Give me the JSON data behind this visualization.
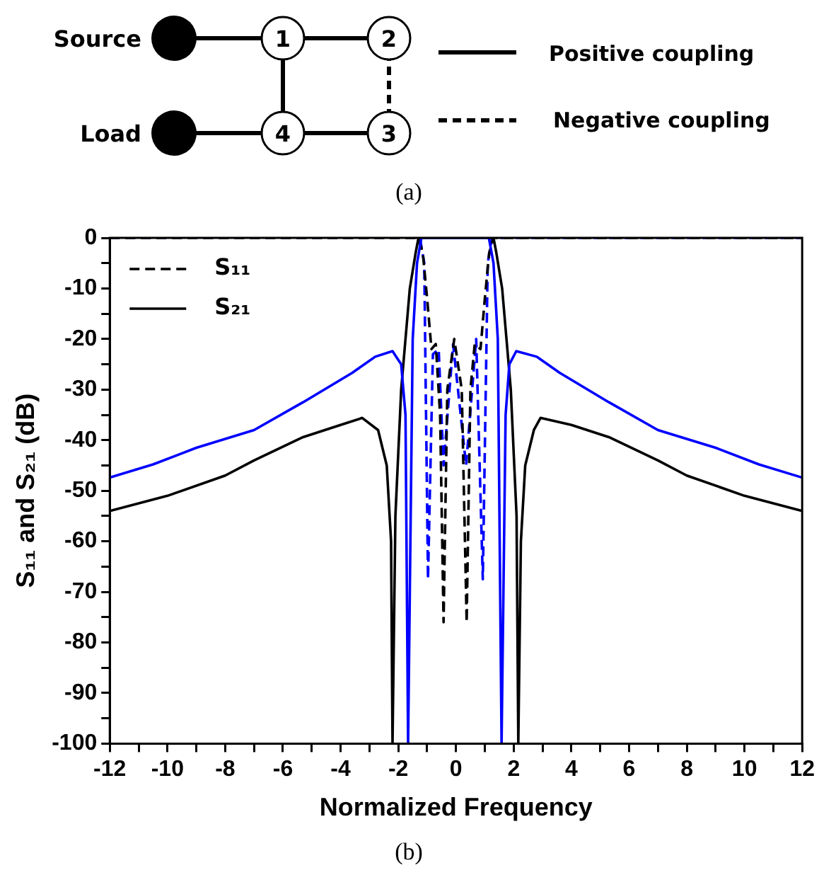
{
  "chart_data": {
    "type": "line",
    "xlabel": "Normalized Frequency",
    "ylabel": "S₁₁ and S₂₁ (dB)",
    "annotations": [
      "Source",
      "Load",
      "1",
      "2",
      "3",
      "4",
      "Positive coupling",
      "Negative coupling",
      "(a)",
      "(b)"
    ],
    "xlim": [
      -12,
      12
    ],
    "ylim": [
      -100,
      0
    ],
    "xticks": [
      -12,
      {
        "value": -11,
        "label": null
      },
      -10,
      {
        "value": -9,
        "label": null
      },
      -8,
      {
        "value": -7,
        "label": null
      },
      -6,
      {
        "value": -5,
        "label": null
      },
      -4,
      {
        "value": -3,
        "label": null
      },
      -2,
      {
        "value": -1,
        "label": null
      },
      0,
      {
        "value": 1,
        "label": null
      },
      2,
      {
        "value": 3,
        "label": null
      },
      4,
      {
        "value": 5,
        "label": null
      },
      6,
      {
        "value": 7,
        "label": null
      },
      8,
      {
        "value": 9,
        "label": null
      },
      10,
      {
        "value": 11,
        "label": null
      },
      12
    ],
    "yticks": [
      0,
      {
        "value": -5,
        "label": null
      },
      -10,
      {
        "value": -15,
        "label": null
      },
      -20,
      {
        "value": -25,
        "label": null
      },
      -30,
      {
        "value": -35,
        "label": null
      },
      -40,
      {
        "value": -45,
        "label": null
      },
      -50,
      {
        "value": -55,
        "label": null
      },
      -60,
      {
        "value": -65,
        "label": null
      },
      -70,
      {
        "value": -75,
        "label": null
      },
      -80,
      {
        "value": -85,
        "label": null
      },
      -90,
      {
        "value": -95,
        "label": null
      },
      -100
    ],
    "grid": false,
    "legend": "top left",
    "marker": "none",
    "series": [
      {
        "color": "#0000ff",
        "line_style": "solid",
        "x": [
          -12,
          -10.5,
          -9,
          -7,
          -5.3,
          -3.6,
          -2.8,
          -2.2,
          -1.9,
          -1.75,
          -1.66,
          -1.5,
          -1.35,
          -1.2,
          1.14,
          1.3,
          1.45,
          1.58,
          1.72,
          1.85,
          2.09,
          2.8,
          3.6,
          5.3,
          7,
          9,
          10.5,
          12
        ],
        "values": [
          -47.4,
          -44.8,
          -41.5,
          -38,
          -32.5,
          -26.7,
          -23.5,
          -22.4,
          -25,
          -35,
          -100,
          -20,
          -5,
          0,
          0,
          -5,
          -20,
          -100,
          -35,
          -25,
          -22.4,
          -23.5,
          -26.7,
          -32.5,
          -38,
          -41.5,
          -44.8,
          -47.4
        ]
      },
      {
        "name": "S₂₁",
        "color": "#000000",
        "line_style": "solid",
        "x": [
          -12,
          -10,
          -8,
          -7,
          -5.3,
          -4,
          -3.25,
          -2.7,
          -2.4,
          -2.25,
          -2.2,
          -2.1,
          -1.9,
          -1.6,
          -1.4,
          -1.3,
          1.3,
          1.4,
          1.6,
          1.9,
          2.1,
          2.16,
          2.25,
          2.4,
          2.7,
          2.93,
          4,
          5.3,
          7,
          8,
          10,
          12
        ],
        "values": [
          -54,
          -51,
          -47,
          -44,
          -39.4,
          -37,
          -35.6,
          -38,
          -45,
          -60,
          -100,
          -55,
          -30,
          -10,
          -3,
          0,
          0,
          -3,
          -10,
          -30,
          -55,
          -100,
          -60,
          -45,
          -38,
          -35.6,
          -37,
          -39.4,
          -44,
          -47,
          -51,
          -54
        ]
      },
      {
        "name": "S₁₁",
        "color": "#000000",
        "line_style": "dashed",
        "x": [
          -12,
          -1.3,
          -1.15,
          -1.0,
          -0.85,
          -0.7,
          -0.55,
          -0.43,
          -0.3,
          -0.06,
          0.2,
          0.37,
          0.5,
          0.65,
          0.85,
          1.0,
          1.15,
          1.3,
          12
        ],
        "values": [
          0,
          0,
          -3,
          -12,
          -22,
          -21,
          -35,
          -76,
          -30,
          -20,
          -30,
          -76,
          -30,
          -21,
          -22,
          -12,
          -3,
          0,
          0
        ]
      },
      {
        "color": "#0000ff",
        "line_style": "dashed",
        "x": [
          -12,
          -1.25,
          -1.1,
          -0.97,
          -0.8,
          -0.6,
          -0.43,
          -0.1,
          0.35,
          0.7,
          0.93,
          1.1,
          1.25,
          12
        ],
        "values": [
          0,
          0,
          -5,
          -67.5,
          -23,
          -22,
          -45,
          -21,
          -45,
          -20,
          -67.5,
          -5,
          0,
          0
        ]
      }
    ]
  }
}
